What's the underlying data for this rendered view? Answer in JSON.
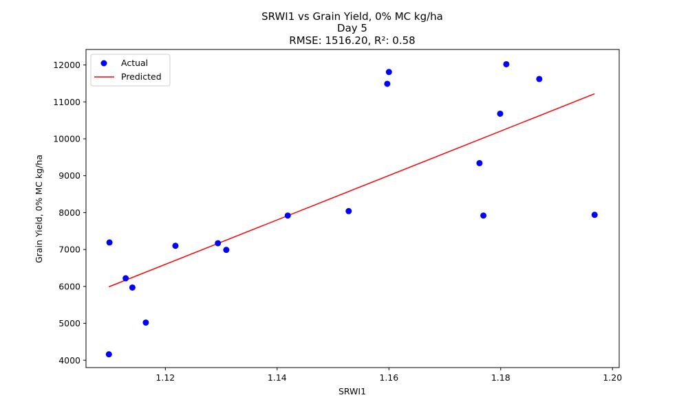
{
  "chart_data": {
    "type": "scatter",
    "title_lines": [
      "SRWI1 vs Grain Yield, 0% MC kg/ha",
      "Day 5",
      "RMSE: 1516.20, R²: 0.58"
    ],
    "xlabel": "SRWI1",
    "ylabel": "Grain Yield, 0% MC kg/ha",
    "xlim": [
      1.1058,
      1.2012
    ],
    "ylim": [
      3800,
      12420
    ],
    "xticks": [
      1.12,
      1.14,
      1.16,
      1.18,
      1.2
    ],
    "xtick_labels": [
      "1.12",
      "1.14",
      "1.16",
      "1.18",
      "1.20"
    ],
    "yticks": [
      4000,
      5000,
      6000,
      7000,
      8000,
      9000,
      10000,
      11000,
      12000
    ],
    "ytick_labels": [
      "4000",
      "5000",
      "6000",
      "7000",
      "8000",
      "9000",
      "10000",
      "11000",
      "12000"
    ],
    "grid": false,
    "legend_position": "top-left",
    "series": [
      {
        "name": "Actual",
        "kind": "scatter",
        "color": "#0000ff",
        "points": [
          [
            1.1099,
            4160
          ],
          [
            1.11,
            7190
          ],
          [
            1.1129,
            6220
          ],
          [
            1.1141,
            5970
          ],
          [
            1.1165,
            5020
          ],
          [
            1.1218,
            7100
          ],
          [
            1.1294,
            7170
          ],
          [
            1.1309,
            6990
          ],
          [
            1.1419,
            7920
          ],
          [
            1.1528,
            8040
          ],
          [
            1.1597,
            11490
          ],
          [
            1.16,
            11810
          ],
          [
            1.1762,
            9340
          ],
          [
            1.1769,
            7920
          ],
          [
            1.1799,
            10680
          ],
          [
            1.181,
            12020
          ],
          [
            1.1869,
            11620
          ],
          [
            1.1968,
            7940
          ]
        ]
      },
      {
        "name": "Predicted",
        "kind": "line",
        "color": "#ff0000",
        "points": [
          [
            1.1099,
            5990
          ],
          [
            1.1968,
            11220
          ]
        ]
      }
    ]
  }
}
